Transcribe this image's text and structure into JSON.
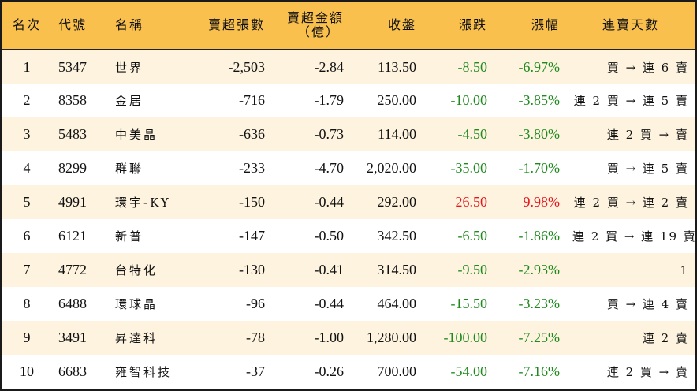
{
  "table": {
    "headers": {
      "rank": "名次",
      "code": "代號",
      "name": "名稱",
      "sell_volume": "賣超張數",
      "sell_amount_line1": "賣超金額",
      "sell_amount_line2": "（億）",
      "close": "收盤",
      "change": "漲跌",
      "change_pct": "漲幅",
      "streak": "連賣天數"
    },
    "rows": [
      {
        "rank": "1",
        "code": "5347",
        "name": "世界",
        "sell_volume": "-2,503",
        "sell_amount": "-2.84",
        "close": "113.50",
        "change": "-8.50",
        "change_pct": "-6.97%",
        "direction": "down",
        "streak": "買 → 連 6 賣"
      },
      {
        "rank": "2",
        "code": "8358",
        "name": "金居",
        "sell_volume": "-716",
        "sell_amount": "-1.79",
        "close": "250.00",
        "change": "-10.00",
        "change_pct": "-3.85%",
        "direction": "down",
        "streak": "連 2 買 → 連 5 賣"
      },
      {
        "rank": "3",
        "code": "5483",
        "name": "中美晶",
        "sell_volume": "-636",
        "sell_amount": "-0.73",
        "close": "114.00",
        "change": "-4.50",
        "change_pct": "-3.80%",
        "direction": "down",
        "streak": "連 2 買 → 賣"
      },
      {
        "rank": "4",
        "code": "8299",
        "name": "群聯",
        "sell_volume": "-233",
        "sell_amount": "-4.70",
        "close": "2,020.00",
        "change": "-35.00",
        "change_pct": "-1.70%",
        "direction": "down",
        "streak": "買 → 連 5 賣"
      },
      {
        "rank": "5",
        "code": "4991",
        "name": "環宇-KY",
        "sell_volume": "-150",
        "sell_amount": "-0.44",
        "close": "292.00",
        "change": "26.50",
        "change_pct": "9.98%",
        "direction": "up",
        "streak": "連 2 買 → 連 2 賣"
      },
      {
        "rank": "6",
        "code": "6121",
        "name": "新普",
        "sell_volume": "-147",
        "sell_amount": "-0.50",
        "close": "342.50",
        "change": "-6.50",
        "change_pct": "-1.86%",
        "direction": "down",
        "streak": "連 2 買 → 連 19 賣"
      },
      {
        "rank": "7",
        "code": "4772",
        "name": "台特化",
        "sell_volume": "-130",
        "sell_amount": "-0.41",
        "close": "314.50",
        "change": "-9.50",
        "change_pct": "-2.93%",
        "direction": "down",
        "streak": "1"
      },
      {
        "rank": "8",
        "code": "6488",
        "name": "環球晶",
        "sell_volume": "-96",
        "sell_amount": "-0.44",
        "close": "464.00",
        "change": "-15.50",
        "change_pct": "-3.23%",
        "direction": "down",
        "streak": "買 → 連 4 賣"
      },
      {
        "rank": "9",
        "code": "3491",
        "name": "昇達科",
        "sell_volume": "-78",
        "sell_amount": "-1.00",
        "close": "1,280.00",
        "change": "-100.00",
        "change_pct": "-7.25%",
        "direction": "down",
        "streak": "連 2 賣"
      },
      {
        "rank": "10",
        "code": "6683",
        "name": "雍智科技",
        "sell_volume": "-37",
        "sell_amount": "-0.26",
        "close": "700.00",
        "change": "-54.00",
        "change_pct": "-7.16%",
        "direction": "down",
        "streak": "連 2 買 → 賣"
      }
    ]
  },
  "colors": {
    "header_bg": "#F9C04D",
    "row_alt_bg": "#FDF3DF",
    "down": "#1E8A1E",
    "up": "#E8141C"
  }
}
